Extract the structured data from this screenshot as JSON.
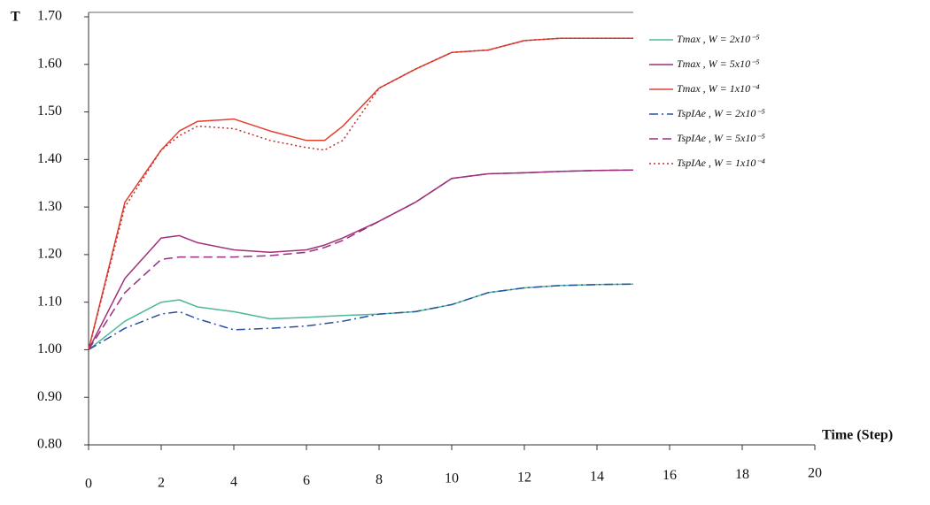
{
  "chart_data": {
    "type": "line",
    "y_label": "T",
    "x_label": "Time (Step)",
    "x": [
      0,
      1,
      2,
      2.5,
      3,
      4,
      5,
      6,
      6.5,
      7,
      8,
      9,
      10,
      11,
      12,
      13,
      14,
      15
    ],
    "series": [
      {
        "name": "Tmax , W = 2x10⁻⁵",
        "color": "#4db89a",
        "dash": "solid",
        "values": [
          1.0,
          1.06,
          1.1,
          1.105,
          1.09,
          1.08,
          1.065,
          1.068,
          1.07,
          1.072,
          1.075,
          1.08,
          1.095,
          1.12,
          1.13,
          1.135,
          1.137,
          1.138
        ]
      },
      {
        "name": "Tmax , W = 5x10⁻⁵",
        "color": "#a0307a",
        "dash": "solid",
        "values": [
          1.0,
          1.15,
          1.235,
          1.24,
          1.225,
          1.21,
          1.205,
          1.21,
          1.22,
          1.235,
          1.27,
          1.31,
          1.36,
          1.37,
          1.372,
          1.375,
          1.377,
          1.378
        ]
      },
      {
        "name": "Tmax , W = 1x10⁻⁴",
        "color": "#e04030",
        "dash": "solid",
        "values": [
          1.0,
          1.31,
          1.42,
          1.46,
          1.48,
          1.485,
          1.46,
          1.44,
          1.44,
          1.47,
          1.55,
          1.59,
          1.625,
          1.63,
          1.65,
          1.655,
          1.655,
          1.655
        ]
      },
      {
        "name": "TspIAe , W = 2x10⁻⁵",
        "color": "#2a4fa0",
        "dash": "dashdot",
        "values": [
          1.0,
          1.045,
          1.075,
          1.08,
          1.065,
          1.042,
          1.045,
          1.05,
          1.055,
          1.06,
          1.075,
          1.08,
          1.095,
          1.12,
          1.13,
          1.135,
          1.137,
          1.138
        ]
      },
      {
        "name": "TspIAe , W = 5x10⁻⁵",
        "color": "#9a3080",
        "dash": "dashed",
        "values": [
          1.0,
          1.12,
          1.19,
          1.195,
          1.195,
          1.195,
          1.198,
          1.205,
          1.215,
          1.23,
          1.27,
          1.31,
          1.36,
          1.37,
          1.372,
          1.375,
          1.377,
          1.378
        ]
      },
      {
        "name": "TspIAe , W = 1x10⁻⁴",
        "color": "#c03030",
        "dash": "dotted",
        "values": [
          1.0,
          1.3,
          1.42,
          1.45,
          1.47,
          1.465,
          1.44,
          1.425,
          1.42,
          1.44,
          1.55,
          1.59,
          1.625,
          1.63,
          1.65,
          1.655,
          1.655,
          1.655
        ]
      }
    ],
    "xlim": [
      0,
      20
    ],
    "xticks": [
      0,
      2,
      4,
      6,
      8,
      10,
      12,
      14,
      16,
      18,
      20
    ],
    "ylim": [
      0.8,
      1.7
    ],
    "yticks": [
      {
        "value": 0.8,
        "label": "0.80"
      },
      {
        "value": 0.9,
        "label": "0.90"
      },
      {
        "value": 1.0,
        "label": "1.00"
      },
      {
        "value": 1.1,
        "label": "1.10"
      },
      {
        "value": 1.2,
        "label": "1.20"
      },
      {
        "value": 1.3,
        "label": "1.30"
      },
      {
        "value": 1.4,
        "label": "1.40"
      },
      {
        "value": 1.5,
        "label": "1.50"
      },
      {
        "value": 1.6,
        "label": "1.60"
      },
      {
        "value": 1.7,
        "label": "1.70"
      }
    ],
    "grid": false
  }
}
